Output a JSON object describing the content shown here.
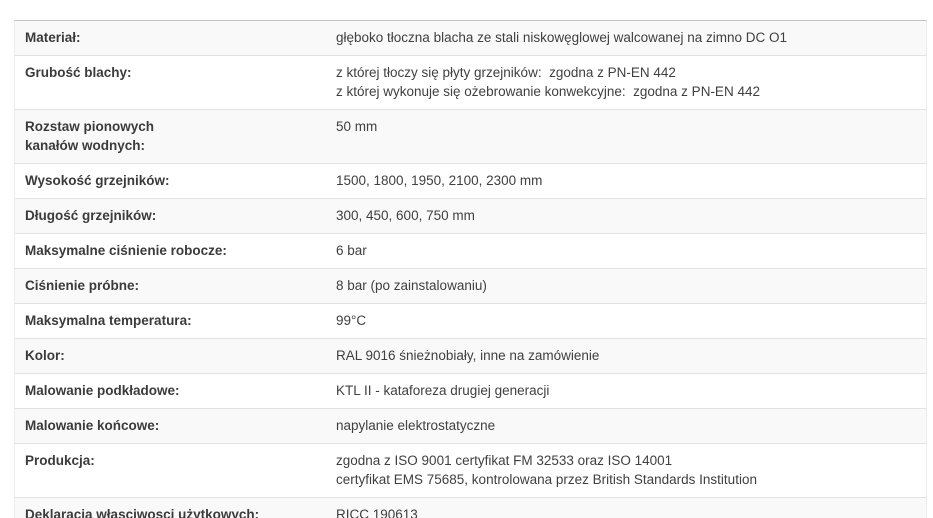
{
  "table": {
    "description": "Tabela specyfikacji technicznej grzejnika",
    "colors": {
      "stripe": "#f9f9f9",
      "row_bg": "#ffffff",
      "top_border": "#c3c3c3",
      "separator": "#e2e2e2",
      "label_text": "#3b3b3b",
      "value_text": "#404040"
    },
    "rows": [
      {
        "label": [
          "Materiał:"
        ],
        "value": [
          "głęboko tłoczna blacha ze stali niskowęglowej walcowanej na zimno DC O1"
        ]
      },
      {
        "label": [
          "Grubość blachy:"
        ],
        "value": [
          "z której tłoczy się płyty grzejników:  zgodna z PN-EN 442",
          "z której wykonuje się ożebrowanie konwekcyjne:  zgodna z PN-EN 442"
        ]
      },
      {
        "label": [
          "Rozstaw pionowych",
          "kanałów wodnych:"
        ],
        "value": [
          "50 mm"
        ]
      },
      {
        "label": [
          "Wysokość grzejników:"
        ],
        "value": [
          "1500, 1800, 1950, 2100, 2300 mm"
        ]
      },
      {
        "label": [
          "Długość grzejników:"
        ],
        "value": [
          "300, 450, 600, 750 mm"
        ]
      },
      {
        "label": [
          "Maksymalne ciśnienie robocze:"
        ],
        "value": [
          "6 bar"
        ]
      },
      {
        "label": [
          "Ciśnienie próbne:"
        ],
        "value": [
          "8 bar (po zainstalowaniu)"
        ]
      },
      {
        "label": [
          "Maksymalna temperatura:"
        ],
        "value": [
          "99°C"
        ]
      },
      {
        "label": [
          "Kolor:"
        ],
        "value": [
          "RAL 9016 śnieżnobiały, inne na zamówienie"
        ]
      },
      {
        "label": [
          "Malowanie podkładowe:"
        ],
        "value": [
          "KTL II - kataforeza drugiej generacji"
        ]
      },
      {
        "label": [
          "Malowanie końcowe:"
        ],
        "value": [
          "napylanie elektrostatyczne"
        ]
      },
      {
        "label": [
          "Produkcja:"
        ],
        "value": [
          "zgodna z ISO 9001 certyfikat FM 32533 oraz ISO 14001",
          "certyfikat EMS 75685, kontrolowana przez British Standards Institution"
        ]
      },
      {
        "label": [
          "Deklaracja własciwosci użytkowych:"
        ],
        "value": [
          "RICC 190613"
        ]
      }
    ]
  }
}
